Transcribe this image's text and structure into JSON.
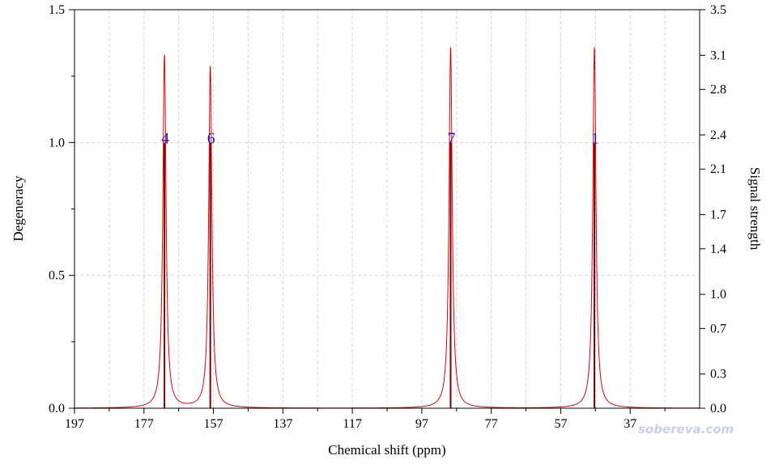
{
  "chart_data": {
    "type": "line",
    "title": "",
    "xlabel": "Chemical shift (ppm)",
    "ylabel_left": "Degeneracy",
    "ylabel_right": "Signal strength",
    "xlim": [
      197,
      17
    ],
    "x_ticks": [
      197,
      177,
      157,
      137,
      117,
      97,
      77,
      57,
      37
    ],
    "ylim_left": [
      0,
      1.5
    ],
    "y_ticks_left": [
      "0.0",
      "0.5",
      "1.0",
      "1.5"
    ],
    "ylim_right": [
      0,
      3.5
    ],
    "y_ticks_right": [
      "0.0",
      "0.3",
      "0.7",
      "1.0",
      "1.4",
      "1.7",
      "2.1",
      "2.4",
      "2.8",
      "3.1",
      "3.5"
    ],
    "grid": true,
    "line_color": "#e00000",
    "stick_color": "#800000",
    "label_color": "#1a1acc",
    "peaks": [
      {
        "label": "4",
        "shift": 171.1,
        "degeneracy": 1.0,
        "strength": 3.1
      },
      {
        "label": "6",
        "shift": 157.9,
        "degeneracy": 1.0,
        "strength": 3.0
      },
      {
        "label": "7",
        "shift": 88.7,
        "degeneracy": 1.0,
        "strength": 3.17
      },
      {
        "label": "1",
        "shift": 47.3,
        "degeneracy": 1.0,
        "strength": 3.17
      }
    ]
  },
  "watermark": {
    "text": "sobereva.com",
    "color": "#c9cdee"
  }
}
